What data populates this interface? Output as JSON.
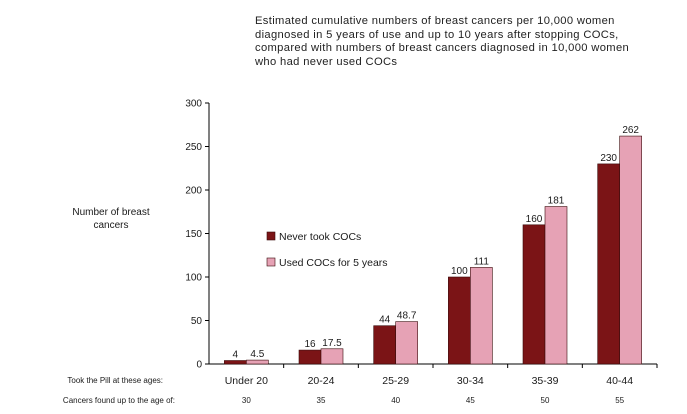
{
  "chart_data": {
    "type": "bar",
    "title_lines": [
      "Estimated cumulative numbers of breast cancers per 10,000 women",
      "diagnosed in 5 years of use and up to 10 years after stopping COCs,",
      "compared with numbers of breast cancers diagnosed in 10,000 women",
      "who had never used COCs"
    ],
    "ylabel_lines": [
      "Number of breast",
      "cancers"
    ],
    "categories": [
      "Under 20",
      "20-24",
      "25-29",
      "30-34",
      "35-39",
      "40-44"
    ],
    "series": [
      {
        "name": "Never took COCs",
        "color": "#7b1416",
        "values": [
          4,
          16,
          44,
          100,
          160,
          230
        ],
        "labels": [
          "4",
          "16",
          "44",
          "100",
          "160",
          "230"
        ]
      },
      {
        "name": "Used COCs for 5 years",
        "color": "#e6a2b5",
        "values": [
          4.5,
          17.5,
          48.7,
          111,
          181,
          262
        ],
        "labels": [
          "4.5",
          "17.5",
          "48.7",
          "111",
          "181",
          "262"
        ]
      }
    ],
    "ylim": [
      0,
      300
    ],
    "yticks": [
      0,
      50,
      100,
      150,
      200,
      250,
      300
    ],
    "legend_position": "center-left",
    "grid": false,
    "row_labels": {
      "took_pill_label": "Took the Pill at these ages:",
      "cancers_found_label": "Cancers found up to the age of:",
      "cancers_found_ages": [
        "30",
        "35",
        "40",
        "45",
        "50",
        "55"
      ]
    }
  }
}
